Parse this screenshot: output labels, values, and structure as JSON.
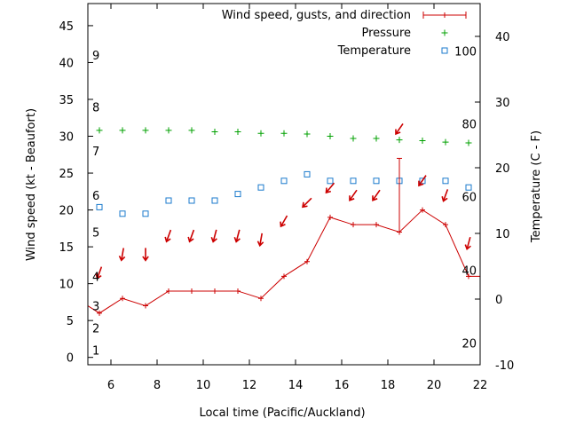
{
  "chart_data": {
    "type": "line",
    "xlabel": "Local time (Pacific/Auckland)",
    "ylabel_left": "Wind speed (kt - Beaufort)",
    "ylabel_right": "Temperature (C - F)",
    "xlim": [
      5,
      22
    ],
    "ylim_left": [
      -1,
      48
    ],
    "ylim_right": [
      -10,
      45
    ],
    "x_ticks": [
      6,
      8,
      10,
      12,
      14,
      16,
      18,
      20,
      22
    ],
    "y_left_ticks": [
      0,
      5,
      10,
      15,
      20,
      25,
      30,
      35,
      40,
      45
    ],
    "y_right_ticks": [
      -10,
      0,
      10,
      20,
      30,
      40
    ],
    "beaufort_labels": [
      {
        "text": "1",
        "kt": 1
      },
      {
        "text": "2",
        "kt": 4
      },
      {
        "text": "3",
        "kt": 7
      },
      {
        "text": "4",
        "kt": 11
      },
      {
        "text": "5",
        "kt": 17
      },
      {
        "text": "6",
        "kt": 22
      },
      {
        "text": "7",
        "kt": 28
      },
      {
        "text": "8",
        "kt": 34
      },
      {
        "text": "9",
        "kt": 41
      }
    ],
    "fahrenheit_labels": [
      {
        "text": "20",
        "celsius": -6.7
      },
      {
        "text": "40",
        "celsius": 4.4
      },
      {
        "text": "60",
        "celsius": 15.6
      },
      {
        "text": "80",
        "celsius": 26.7
      },
      {
        "text": "100",
        "celsius": 37.8
      }
    ],
    "legend": {
      "wind": "Wind speed, gusts, and direction",
      "pressure": "Pressure",
      "temperature": "Temperature"
    },
    "colors": {
      "wind": "#cc0000",
      "pressure": "#00a000",
      "temperature": "#1a7acc"
    },
    "wind_speed": {
      "x": [
        5.0,
        5.5,
        6.5,
        7.5,
        8.5,
        9.5,
        10.5,
        11.5,
        12.5,
        13.5,
        14.5,
        15.5,
        16.5,
        17.5,
        18.5,
        19.5,
        20.5,
        21.5,
        22.0
      ],
      "y": [
        7,
        6,
        8,
        7,
        9,
        9,
        9,
        9,
        8,
        11,
        13,
        19,
        18,
        18,
        17,
        20,
        18,
        11,
        11
      ]
    },
    "wind_gusts": [
      {
        "x": 18.5,
        "y": 27
      }
    ],
    "wind_direction_arrows": [
      {
        "x": 5.5,
        "y": 11.5,
        "to_deg": 110
      },
      {
        "x": 6.5,
        "y": 14.0,
        "to_deg": 100
      },
      {
        "x": 7.5,
        "y": 14.0,
        "to_deg": 90
      },
      {
        "x": 8.5,
        "y": 16.5,
        "to_deg": 110
      },
      {
        "x": 9.5,
        "y": 16.5,
        "to_deg": 110
      },
      {
        "x": 10.5,
        "y": 16.5,
        "to_deg": 105
      },
      {
        "x": 11.5,
        "y": 16.5,
        "to_deg": 105
      },
      {
        "x": 12.5,
        "y": 16.0,
        "to_deg": 100
      },
      {
        "x": 13.5,
        "y": 18.5,
        "to_deg": 120
      },
      {
        "x": 14.5,
        "y": 21.0,
        "to_deg": 135
      },
      {
        "x": 15.5,
        "y": 23.0,
        "to_deg": 130
      },
      {
        "x": 16.5,
        "y": 22.0,
        "to_deg": 125
      },
      {
        "x": 17.5,
        "y": 22.0,
        "to_deg": 125
      },
      {
        "x": 18.5,
        "y": 31.0,
        "to_deg": 125
      },
      {
        "x": 19.5,
        "y": 24.0,
        "to_deg": 125
      },
      {
        "x": 20.5,
        "y": 22.0,
        "to_deg": 110
      },
      {
        "x": 21.5,
        "y": 15.5,
        "to_deg": 105
      }
    ],
    "pressure": {
      "x": [
        5.5,
        6.5,
        7.5,
        8.5,
        9.5,
        10.5,
        11.5,
        12.5,
        13.5,
        14.5,
        15.5,
        16.5,
        17.5,
        18.5,
        19.5,
        20.5,
        21.5
      ],
      "y": [
        30.8,
        30.8,
        30.8,
        30.8,
        30.8,
        30.6,
        30.6,
        30.4,
        30.4,
        30.3,
        30.0,
        29.7,
        29.7,
        29.5,
        29.4,
        29.2,
        29.1
      ]
    },
    "temperature": {
      "x": [
        5.5,
        6.5,
        7.5,
        8.5,
        9.5,
        10.5,
        11.5,
        12.5,
        13.5,
        14.5,
        15.5,
        16.5,
        17.5,
        18.5,
        19.5,
        20.5,
        21.5
      ],
      "y": [
        14,
        13,
        13,
        15,
        15,
        15,
        16,
        17,
        18,
        19,
        18,
        18,
        18,
        18,
        18,
        18,
        17
      ]
    },
    "grid": false,
    "legend_position": "top-right"
  }
}
